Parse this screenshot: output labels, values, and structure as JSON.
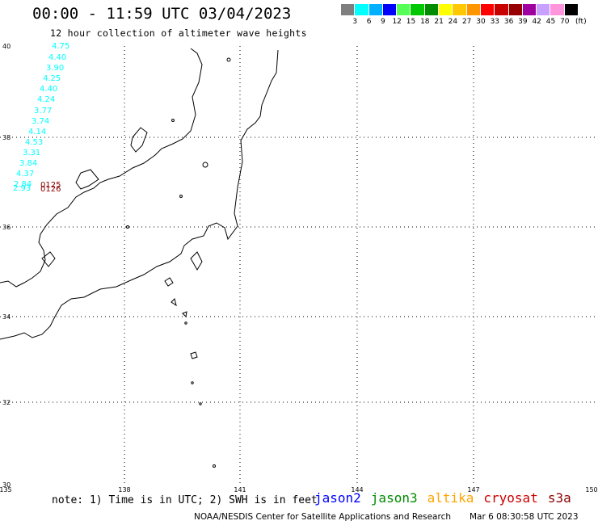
{
  "header": {
    "title": "00:00 - 11:59 UTC 03/04/2023",
    "subtitle": "12 hour collection of altimeter wave heights"
  },
  "colorbar": {
    "unit": "(ft)",
    "labels": [
      "3",
      "6",
      "9",
      "12",
      "15",
      "18",
      "21",
      "24",
      "27",
      "30",
      "33",
      "36",
      "39",
      "42",
      "45",
      "70"
    ],
    "colors": [
      "#7f7f7f",
      "#00ffff",
      "#00b0ff",
      "#0000ff",
      "#55ff55",
      "#00c800",
      "#008c00",
      "#ffff00",
      "#ffc800",
      "#ff9600",
      "#ff0000",
      "#c80000",
      "#960000",
      "#a000a0",
      "#c8a0ff",
      "#ff96dc",
      "#000000"
    ]
  },
  "map": {
    "lat_ticks": [
      "40",
      "38",
      "36",
      "34",
      "32",
      "30"
    ],
    "lon_ticks": [
      "135",
      "138",
      "141",
      "144",
      "147",
      "150"
    ],
    "observations": {
      "color": "#00ffff",
      "values": [
        "4.75",
        "4.40",
        "3.90",
        "4.25",
        "4.40",
        "4.24",
        "3.77",
        "3.74",
        "4.14",
        "4.53",
        "3.31",
        "3.84",
        "4.37",
        "2.84",
        "2.93"
      ]
    },
    "pass_labels": {
      "color": "#8b0000",
      "values": [
        "0125",
        "0126"
      ]
    }
  },
  "footer": {
    "note": "note: 1) Time is in UTC; 2) SWH is in feet",
    "legend": [
      {
        "name": "jason2",
        "color": "#0000ff"
      },
      {
        "name": "jason3",
        "color": "#008c00"
      },
      {
        "name": "altika",
        "color": "#ffa500"
      },
      {
        "name": "cryosat",
        "color": "#cc0000"
      },
      {
        "name": "s3a",
        "color": "#8b0000"
      }
    ],
    "credit": "NOAA/NESDIS Center for Satellite Applications and Research",
    "timestamp": "Mar  6 08:30:58 UTC 2023"
  }
}
